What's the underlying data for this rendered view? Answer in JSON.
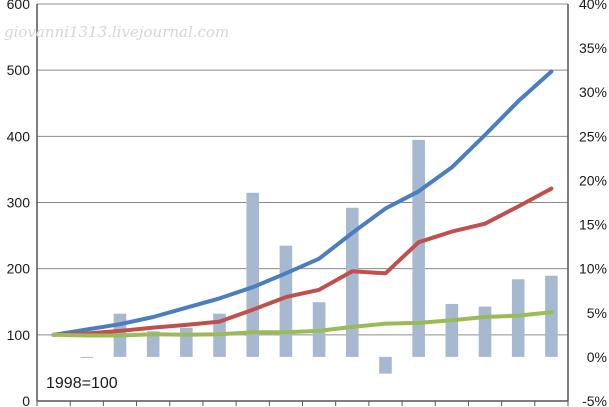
{
  "chart_data": {
    "type": "bar+line",
    "watermark": "giovanni1313.livejournal.com",
    "annotation": "1998=100",
    "x": [
      "",
      "",
      "",
      "",
      "",
      "",
      "",
      "",
      "",
      "",
      "",
      "",
      "",
      "",
      "",
      ""
    ],
    "y_left": {
      "min": 0,
      "max": 600,
      "ticks": [
        "0",
        "100",
        "200",
        "300",
        "400",
        "500",
        "600"
      ]
    },
    "y_right": {
      "min": -5,
      "max": 40,
      "unit": "%",
      "ticks": [
        "-5%",
        "0%",
        "5%",
        "10%",
        "15%",
        "20%",
        "25%",
        "30%",
        "35%",
        "40%"
      ]
    },
    "bars": {
      "axis": "right",
      "color": "#a7b9d1",
      "values": [
        null,
        -0.1,
        4.9,
        2.9,
        3.3,
        4.9,
        18.6,
        12.6,
        6.2,
        16.9,
        -1.9,
        24.6,
        6.0,
        5.7,
        8.8,
        9.2
      ]
    },
    "series": [
      {
        "axis": "left",
        "color": "#4a7ebf",
        "values": [
          100,
          108,
          116,
          127,
          141,
          155,
          172,
          193,
          215,
          254,
          291,
          317,
          353,
          402,
          453,
          498
        ]
      },
      {
        "axis": "left",
        "color": "#c0504d",
        "values": [
          100,
          102,
          106,
          111,
          115,
          120,
          138,
          157,
          168,
          196,
          193,
          240,
          256,
          268,
          294,
          321
        ]
      },
      {
        "axis": "left",
        "color": "#9bbb59",
        "values": [
          100,
          99,
          99,
          101,
          100,
          101,
          104,
          104,
          106,
          112,
          117,
          118,
          122,
          127,
          129,
          134
        ]
      }
    ]
  }
}
